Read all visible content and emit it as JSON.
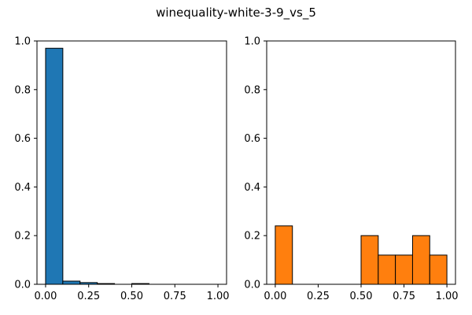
{
  "title": "winequality-white-3-9_vs_5",
  "chart_data": [
    {
      "type": "bar",
      "bin_edges": [
        0.0,
        0.1,
        0.2,
        0.3,
        0.4,
        0.5,
        0.6,
        0.7,
        0.8,
        0.9,
        1.0
      ],
      "values": [
        0.97,
        0.013,
        0.007,
        0.003,
        0.0,
        0.003,
        0.0,
        0.0,
        0.0,
        0.0
      ],
      "color": "#1f77b4",
      "xlim": [
        -0.05,
        1.05
      ],
      "ylim": [
        0,
        1.0
      ],
      "xticks": [
        "0.00",
        "0.25",
        "0.50",
        "0.75",
        "1.00"
      ],
      "yticks": [
        "0.0",
        "0.2",
        "0.4",
        "0.6",
        "0.8",
        "1.0"
      ],
      "grid": false
    },
    {
      "type": "bar",
      "bin_edges": [
        0.0,
        0.1,
        0.2,
        0.3,
        0.4,
        0.5,
        0.6,
        0.7,
        0.8,
        0.9,
        1.0
      ],
      "values": [
        0.24,
        0.0,
        0.0,
        0.0,
        0.0,
        0.2,
        0.12,
        0.12,
        0.2,
        0.12
      ],
      "color": "#ff7f0e",
      "xlim": [
        -0.05,
        1.05
      ],
      "ylim": [
        0,
        1.0
      ],
      "xticks": [
        "0.00",
        "0.25",
        "0.50",
        "0.75",
        "1.00"
      ],
      "yticks": [
        "0.0",
        "0.2",
        "0.4",
        "0.6",
        "0.8",
        "1.0"
      ],
      "grid": false
    }
  ]
}
